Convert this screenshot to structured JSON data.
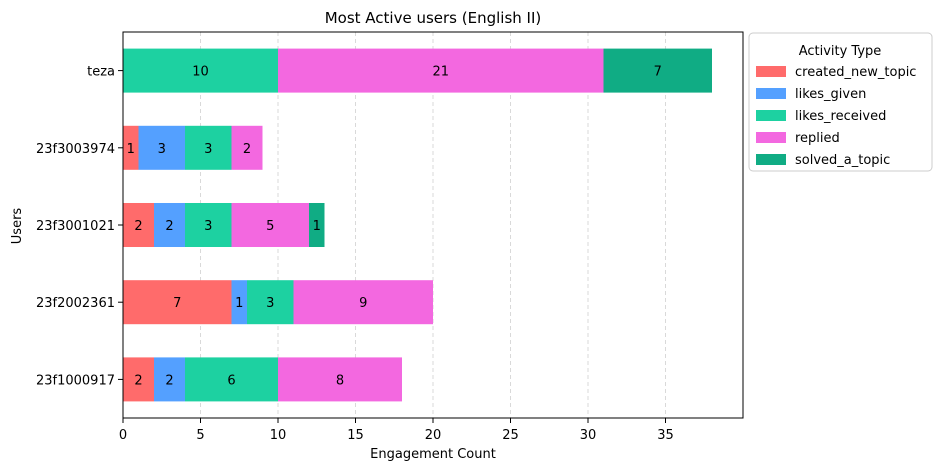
{
  "chart_data": {
    "type": "bar",
    "orientation": "horizontal",
    "stacked": true,
    "title": "Most Active users (English II)",
    "xlabel": "Engagement Count",
    "ylabel": "Users",
    "xlim": [
      0,
      40
    ],
    "xticks": [
      0,
      5,
      10,
      15,
      20,
      25,
      30,
      35
    ],
    "grid": "vertical-dashed",
    "legend_title": "Activity Type",
    "legend_position": "outside-top-right",
    "categories": [
      "23f1000917",
      "23f2002361",
      "23f3001021",
      "23f3003974",
      "teza"
    ],
    "series": [
      {
        "name": "created_new_topic",
        "color": "#ff6b6b",
        "values": [
          2,
          7,
          2,
          1,
          0
        ]
      },
      {
        "name": "likes_given",
        "color": "#54a0ff",
        "values": [
          2,
          1,
          2,
          3,
          0
        ]
      },
      {
        "name": "likes_received",
        "color": "#1dd1a1",
        "values": [
          6,
          3,
          3,
          3,
          10
        ]
      },
      {
        "name": "replied",
        "color": "#f368e0",
        "values": [
          8,
          9,
          5,
          2,
          21
        ]
      },
      {
        "name": "solved_a_topic",
        "color": "#10ac84",
        "values": [
          0,
          0,
          1,
          0,
          7
        ]
      }
    ]
  }
}
